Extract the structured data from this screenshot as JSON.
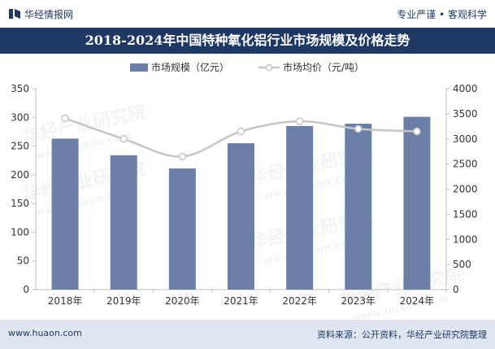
{
  "header": {
    "brand": "华经情报网",
    "slogan": "专业严谨 • 客观科学"
  },
  "title": "2018-2024年中国特种氧化铝行业市场规模及价格走势",
  "footer": {
    "website": "www.huaon.com",
    "source": "资料来源：公开资料，华经产业研究院整理"
  },
  "watermark": {
    "text": "华经产业研究院",
    "url": "www.huaon.com"
  },
  "colors": {
    "bar": "#6b7fa6",
    "line": "#c6c6c6",
    "title_bg": "#1f3864",
    "footer_bg": "#dfe6f1"
  },
  "chart_data": {
    "type": "bar+line",
    "title": "2018-2024年中国特种氧化铝行业市场规模及价格走势",
    "categories": [
      "2018年",
      "2019年",
      "2020年",
      "2021年",
      "2022年",
      "2023年",
      "2024年"
    ],
    "series": [
      {
        "name": "市场规模（亿元）",
        "type": "bar",
        "axis": "left",
        "values": [
          263,
          234,
          211,
          255,
          285,
          289,
          301
        ]
      },
      {
        "name": "市场均价（元/吨）",
        "type": "line",
        "axis": "right",
        "values": [
          3410,
          3000,
          2650,
          3150,
          3350,
          3200,
          3150
        ]
      }
    ],
    "y_left": {
      "min": 0,
      "max": 350,
      "ticks": [
        0,
        50,
        100,
        150,
        200,
        250,
        300,
        350
      ]
    },
    "y_right": {
      "min": 0,
      "max": 4000,
      "ticks": [
        0,
        500,
        1000,
        1500,
        2000,
        2500,
        3000,
        3500,
        4000
      ]
    },
    "legend_position": "top-center",
    "grid": false
  }
}
